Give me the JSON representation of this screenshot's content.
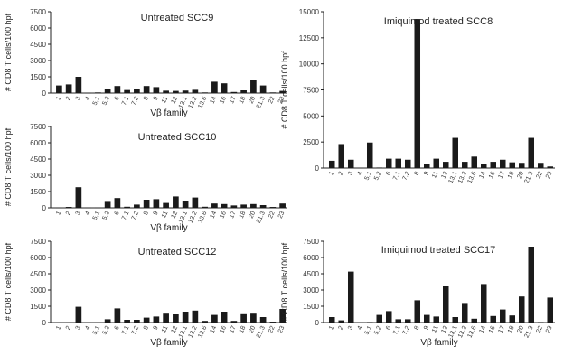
{
  "chart_data": [
    {
      "type": "bar",
      "title": "Untreated SCC9",
      "ylabel": "# CD8 T cells/100 hpf",
      "xlabel": "Vβ family",
      "ylim": [
        0,
        7500
      ],
      "yticks": [
        "0",
        "1500",
        "3000",
        "4500",
        "6000",
        "7500"
      ],
      "categories": [
        "1",
        "2",
        "3",
        "4",
        "5.1",
        "5.2",
        "6",
        "7.1",
        "7.2",
        "8",
        "9",
        "11",
        "12",
        "13.1",
        "13.2",
        "13.6",
        "14",
        "16",
        "17",
        "18",
        "20",
        "21.3",
        "22",
        "23"
      ],
      "values": [
        700,
        800,
        1500,
        20,
        60,
        350,
        650,
        280,
        380,
        650,
        550,
        220,
        200,
        230,
        300,
        60,
        1050,
        900,
        100,
        250,
        1200,
        700,
        60,
        200
      ]
    },
    {
      "type": "bar",
      "title": "Untreated SCC10",
      "ylabel": "# CD8 T cells/100 hpf",
      "xlabel": "Vβ family",
      "ylim": [
        0,
        7500
      ],
      "yticks": [
        "0",
        "1500",
        "3000",
        "4500",
        "6000",
        "7500"
      ],
      "categories": [
        "1",
        "2",
        "3",
        "4",
        "5.1",
        "5.2",
        "6",
        "7.1",
        "7.2",
        "8",
        "9",
        "11",
        "12",
        "13.1",
        "13.2",
        "13.6",
        "14",
        "16",
        "17",
        "18",
        "20",
        "21.3",
        "22",
        "23"
      ],
      "values": [
        20,
        80,
        1900,
        30,
        30,
        550,
        900,
        100,
        300,
        750,
        800,
        450,
        1050,
        600,
        950,
        100,
        400,
        350,
        220,
        300,
        350,
        250,
        80,
        400
      ]
    },
    {
      "type": "bar",
      "title": "Untreated SCC12",
      "ylabel": "# CD8 T cells/100 hpf",
      "xlabel": "Vβ family",
      "ylim": [
        0,
        7500
      ],
      "yticks": [
        "0",
        "1500",
        "3000",
        "4500",
        "6000",
        "7500"
      ],
      "categories": [
        "1",
        "2",
        "3",
        "4",
        "5.1",
        "5.2",
        "6",
        "7.1",
        "7.2",
        "8",
        "9",
        "11",
        "12",
        "13.1",
        "13.2",
        "13.6",
        "14",
        "16",
        "17",
        "18",
        "20",
        "21.3",
        "22",
        "23"
      ],
      "values": [
        20,
        30,
        1450,
        20,
        20,
        300,
        1300,
        250,
        250,
        450,
        550,
        900,
        800,
        1000,
        1100,
        150,
        700,
        1000,
        150,
        850,
        900,
        500,
        80,
        1250
      ]
    },
    {
      "type": "bar",
      "title": "Imiquimod treated SCC8",
      "ylabel": "# CD8 T cells/100 hpf",
      "xlabel": "",
      "ylim": [
        0,
        15000
      ],
      "yticks": [
        "0",
        "2500",
        "5000",
        "7500",
        "10000",
        "12500",
        "15000"
      ],
      "categories": [
        "1",
        "2",
        "3",
        "4",
        "5.1",
        "5.2",
        "6",
        "7.1",
        "7.2",
        "8",
        "9",
        "11",
        "12",
        "13.1",
        "13.2",
        "13.6",
        "14",
        "16",
        "17",
        "18",
        "20",
        "21.3",
        "22",
        "23"
      ],
      "values": [
        700,
        2300,
        800,
        30,
        2450,
        50,
        900,
        900,
        800,
        14300,
        400,
        900,
        600,
        2900,
        600,
        1100,
        350,
        600,
        800,
        550,
        500,
        2900,
        500,
        150
      ]
    },
    {
      "type": "bar",
      "title": "Imiquimod treated SCC17",
      "ylabel": "# CD8 T cells/100 hpf",
      "xlabel": "Vβ family",
      "ylim": [
        0,
        7500
      ],
      "yticks": [
        "0",
        "1500",
        "3000",
        "4500",
        "6000",
        "7500"
      ],
      "categories": [
        "1",
        "2",
        "3",
        "4",
        "5.1",
        "5.2",
        "6",
        "7.1",
        "7.2",
        "8",
        "9",
        "11",
        "12",
        "13.1",
        "13.2",
        "13.6",
        "14",
        "16",
        "17",
        "18",
        "20",
        "21.3",
        "22",
        "23"
      ],
      "values": [
        500,
        200,
        4700,
        20,
        50,
        700,
        1050,
        300,
        300,
        2050,
        700,
        550,
        3350,
        500,
        1800,
        350,
        3550,
        600,
        1200,
        650,
        2400,
        7000,
        50,
        2300
      ]
    }
  ]
}
